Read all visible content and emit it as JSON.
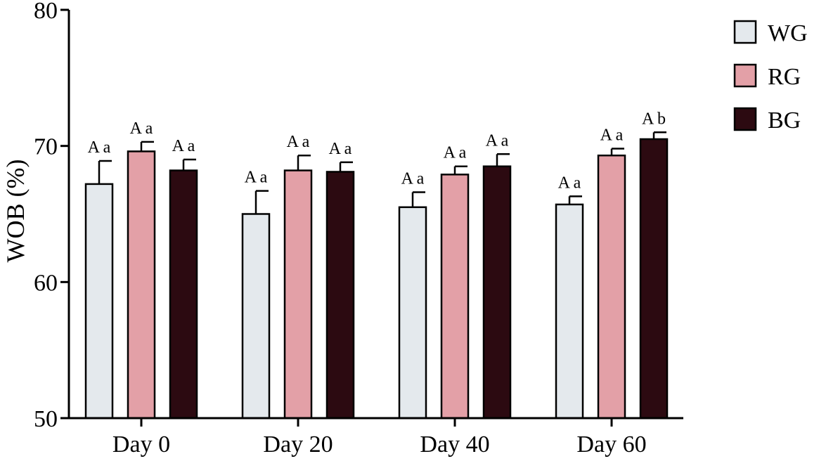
{
  "chart_data": {
    "type": "bar",
    "title": "",
    "xlabel": "",
    "ylabel": "WOB (%)",
    "ylim": [
      50,
      80
    ],
    "yticks": [
      50,
      60,
      70,
      80
    ],
    "categories": [
      "Day 0",
      "Day 20",
      "Day 40",
      "Day 60"
    ],
    "grid": false,
    "legend_position": "top-right",
    "series": [
      {
        "name": "WG",
        "color": "#e4e9ed",
        "values": [
          67.2,
          65.0,
          65.5,
          65.7
        ],
        "errors": [
          1.7,
          1.7,
          1.1,
          0.6
        ],
        "labels": [
          "A a",
          "A a",
          "A a",
          "A a"
        ]
      },
      {
        "name": "RG",
        "color": "#e3a0a7",
        "values": [
          69.6,
          68.2,
          67.9,
          69.3
        ],
        "errors": [
          0.7,
          1.1,
          0.6,
          0.5
        ],
        "labels": [
          "A a",
          "A a",
          "A a",
          "A a"
        ]
      },
      {
        "name": "BG",
        "color": "#2c0a11",
        "values": [
          68.2,
          68.1,
          68.5,
          70.5
        ],
        "errors": [
          0.8,
          0.7,
          0.9,
          0.5
        ],
        "labels": [
          "A a",
          "A a",
          "A a",
          "A b"
        ]
      }
    ]
  }
}
